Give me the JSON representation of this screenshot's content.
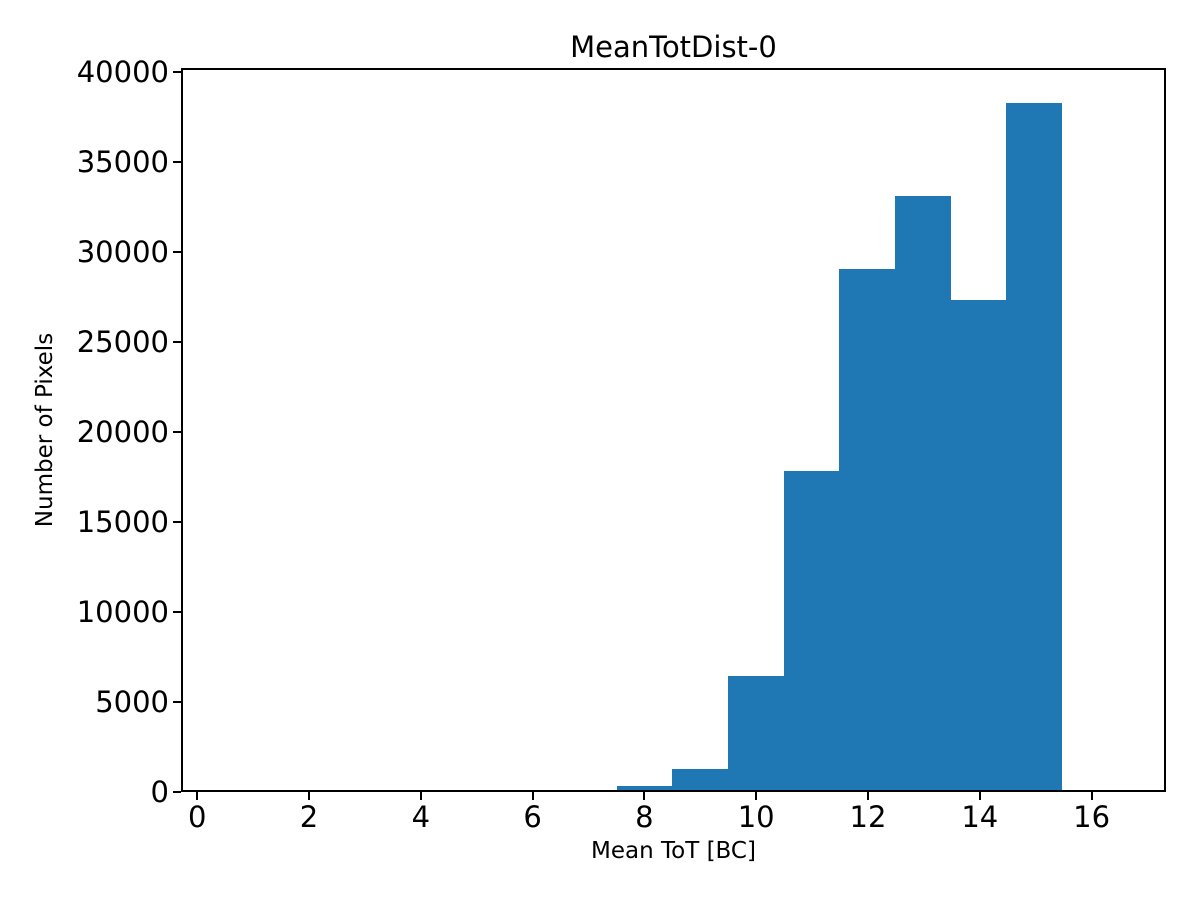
{
  "figure": {
    "background_color": "#ffffff",
    "axes_color": "#000000"
  },
  "chart_data": {
    "type": "bar",
    "subtype": "histogram",
    "title": "MeanTotDist-0",
    "xlabel": "Mean ToT [BC]",
    "ylabel": "Number of Pixels",
    "bar_color": "#1f77b4",
    "bin_edges": [
      7.5,
      8.5,
      9.5,
      10.5,
      11.5,
      12.5,
      13.5,
      14.5,
      15.5
    ],
    "counts": [
      200,
      1200,
      6350,
      17800,
      29100,
      33200,
      27400,
      38400
    ],
    "xticks": [
      0,
      2,
      4,
      6,
      8,
      10,
      12,
      14,
      16
    ],
    "yticks": [
      0,
      5000,
      10000,
      15000,
      20000,
      25000,
      30000,
      35000,
      40000
    ],
    "xlim": [
      -0.29,
      17.33
    ],
    "ylim": [
      0,
      40220
    ],
    "grid": false,
    "legend": null
  }
}
